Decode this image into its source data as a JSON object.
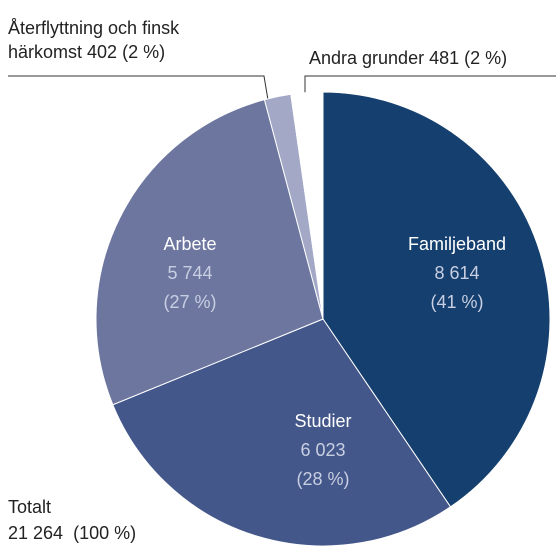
{
  "chart_data": {
    "type": "pie",
    "categories": [
      "Familjeband",
      "Studier",
      "Arbete",
      "Återflyttning och finsk härkomst",
      "Andra grunder"
    ],
    "values": [
      8614,
      6023,
      5744,
      402,
      481
    ],
    "value_labels": [
      "8 614",
      "6 023",
      "5 744",
      "402",
      "481"
    ],
    "percents": [
      41,
      28,
      27,
      2,
      2
    ],
    "percent_labels": [
      "(41 %)",
      "(28 %)",
      "(27 %)",
      "(2 %)",
      "(2 %)"
    ],
    "colors": [
      "#143f6e",
      "#43578a",
      "#6c769f",
      "#a3a8c6",
      "#ffffff"
    ],
    "total_name": "Totalt",
    "total": 21264,
    "total_label": "21 264",
    "total_percent_label": "(100 %)"
  }
}
